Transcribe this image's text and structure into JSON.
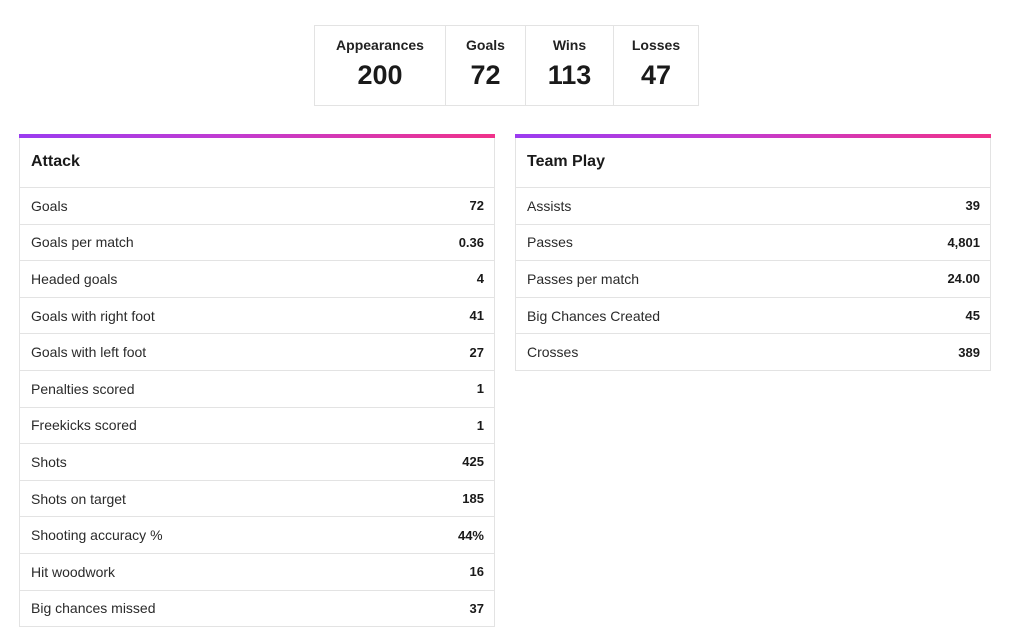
{
  "summary": [
    {
      "label": "Appearances",
      "value": "200"
    },
    {
      "label": "Goals",
      "value": "72"
    },
    {
      "label": "Wins",
      "value": "113"
    },
    {
      "label": "Losses",
      "value": "47"
    }
  ],
  "attack": {
    "title": "Attack",
    "rows": [
      {
        "label": "Goals",
        "value": "72"
      },
      {
        "label": "Goals per match",
        "value": "0.36"
      },
      {
        "label": "Headed goals",
        "value": "4"
      },
      {
        "label": "Goals with right foot",
        "value": "41"
      },
      {
        "label": "Goals with left foot",
        "value": "27"
      },
      {
        "label": "Penalties scored",
        "value": "1"
      },
      {
        "label": "Freekicks scored",
        "value": "1"
      },
      {
        "label": "Shots",
        "value": "425"
      },
      {
        "label": "Shots on target",
        "value": "185"
      },
      {
        "label": "Shooting accuracy %",
        "value": "44%"
      },
      {
        "label": "Hit woodwork",
        "value": "16"
      },
      {
        "label": "Big chances missed",
        "value": "37"
      }
    ]
  },
  "team_play": {
    "title": "Team Play",
    "rows": [
      {
        "label": "Assists",
        "value": "39"
      },
      {
        "label": "Passes",
        "value": "4,801"
      },
      {
        "label": "Passes per match",
        "value": "24.00"
      },
      {
        "label": "Big Chances Created",
        "value": "45"
      },
      {
        "label": "Crosses",
        "value": "389"
      }
    ]
  },
  "colors": {
    "accent_start": "#9b3cf0",
    "accent_end": "#f0328a"
  }
}
